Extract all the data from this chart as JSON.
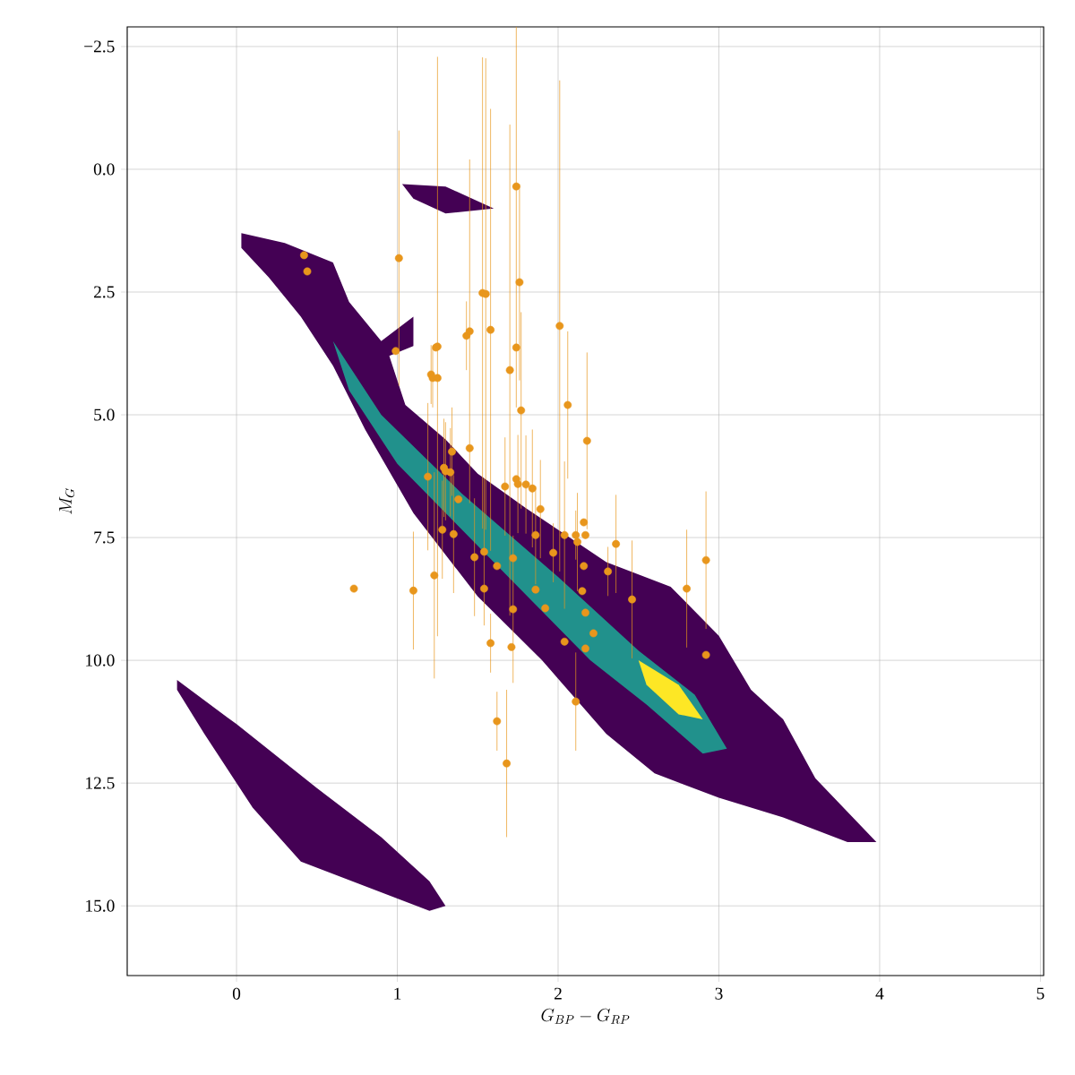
{
  "chart_data": {
    "type": "scatter",
    "xlabel": "G_{BP} - G_{RP}",
    "ylabel": "M_G",
    "xlim": [
      -0.68,
      5.02
    ],
    "ylim": [
      16.42,
      -2.9
    ],
    "xticks": [
      0,
      1,
      2,
      3,
      4,
      5
    ],
    "yticks": [
      {
        "value": -2.5,
        "label": "−2.5"
      },
      {
        "value": 0,
        "label": "0.0"
      },
      {
        "value": 2.5,
        "label": "2.5"
      },
      {
        "value": 5,
        "label": "5.0"
      },
      {
        "value": 7.5,
        "label": "7.5"
      },
      {
        "value": 10,
        "label": "10.0"
      },
      {
        "value": 12.5,
        "label": "12.5"
      },
      {
        "value": 15,
        "label": "15.0"
      }
    ],
    "grid": true,
    "series": [
      {
        "color": "#e8961c",
        "x": [
          0.42,
          0.44,
          1.01,
          0.99,
          0.73,
          1.1,
          1.23,
          1.19,
          1.21,
          1.22,
          1.25,
          1.25,
          1.24,
          1.29,
          1.3,
          1.33,
          1.34,
          1.28,
          1.35,
          1.38,
          1.48,
          1.43,
          1.45,
          1.45,
          1.53,
          1.55,
          1.58,
          1.54,
          1.54,
          1.58,
          1.62,
          1.62,
          1.7,
          1.72,
          1.71,
          1.72,
          1.74,
          1.74,
          1.76,
          1.77,
          1.74,
          1.75,
          1.67,
          1.68,
          1.8,
          1.84,
          1.89,
          1.86,
          1.86,
          1.92,
          1.97,
          2.01,
          2.04,
          2.04,
          2.06,
          2.11,
          2.11,
          2.12,
          2.16,
          2.17,
          2.18,
          2.16,
          2.15,
          2.17,
          2.17,
          2.22,
          2.31,
          2.36,
          2.46,
          2.8,
          2.92,
          2.92
        ],
        "values": [
          1.75,
          2.08,
          1.81,
          3.7,
          8.54,
          8.58,
          8.27,
          6.26,
          4.18,
          4.25,
          4.25,
          3.61,
          3.63,
          6.08,
          6.15,
          6.17,
          5.75,
          7.34,
          7.43,
          6.72,
          7.9,
          3.39,
          3.3,
          5.68,
          2.52,
          2.54,
          3.27,
          7.79,
          8.54,
          9.65,
          11.24,
          8.08,
          4.09,
          8.96,
          9.73,
          7.92,
          3.63,
          0.35,
          2.3,
          4.91,
          6.31,
          6.41,
          6.46,
          12.1,
          6.42,
          6.5,
          6.92,
          7.45,
          8.56,
          8.94,
          7.81,
          3.19,
          7.45,
          9.62,
          4.8,
          7.45,
          10.84,
          7.59,
          7.19,
          7.45,
          5.53,
          8.08,
          8.59,
          9.03,
          9.76,
          9.45,
          8.19,
          7.63,
          8.76,
          8.54,
          7.96,
          9.89
        ],
        "errors": [
          null,
          null,
          2.6,
          null,
          null,
          1.2,
          2.1,
          1.5,
          0.6,
          0.6,
          null,
          5.9,
          null,
          1.0,
          1.0,
          0.9,
          0.9,
          1.0,
          1.2,
          null,
          1.2,
          0.7,
          3.5,
          null,
          4.8,
          4.8,
          4.5,
          1.5,
          null,
          0.6,
          0.6,
          null,
          5.0,
          1.5,
          null,
          null,
          null,
          4.5,
          2.0,
          2.0,
          null,
          1.0,
          1.0,
          1.5,
          1.0,
          1.2,
          1.0,
          1.0,
          null,
          null,
          0.6,
          5.0,
          1.5,
          null,
          1.5,
          0.5,
          1.0,
          1.0,
          null,
          null,
          1.8,
          null,
          null,
          null,
          null,
          null,
          0.5,
          1.0,
          1.2,
          1.2,
          1.4,
          null
        ]
      }
    ]
  }
}
